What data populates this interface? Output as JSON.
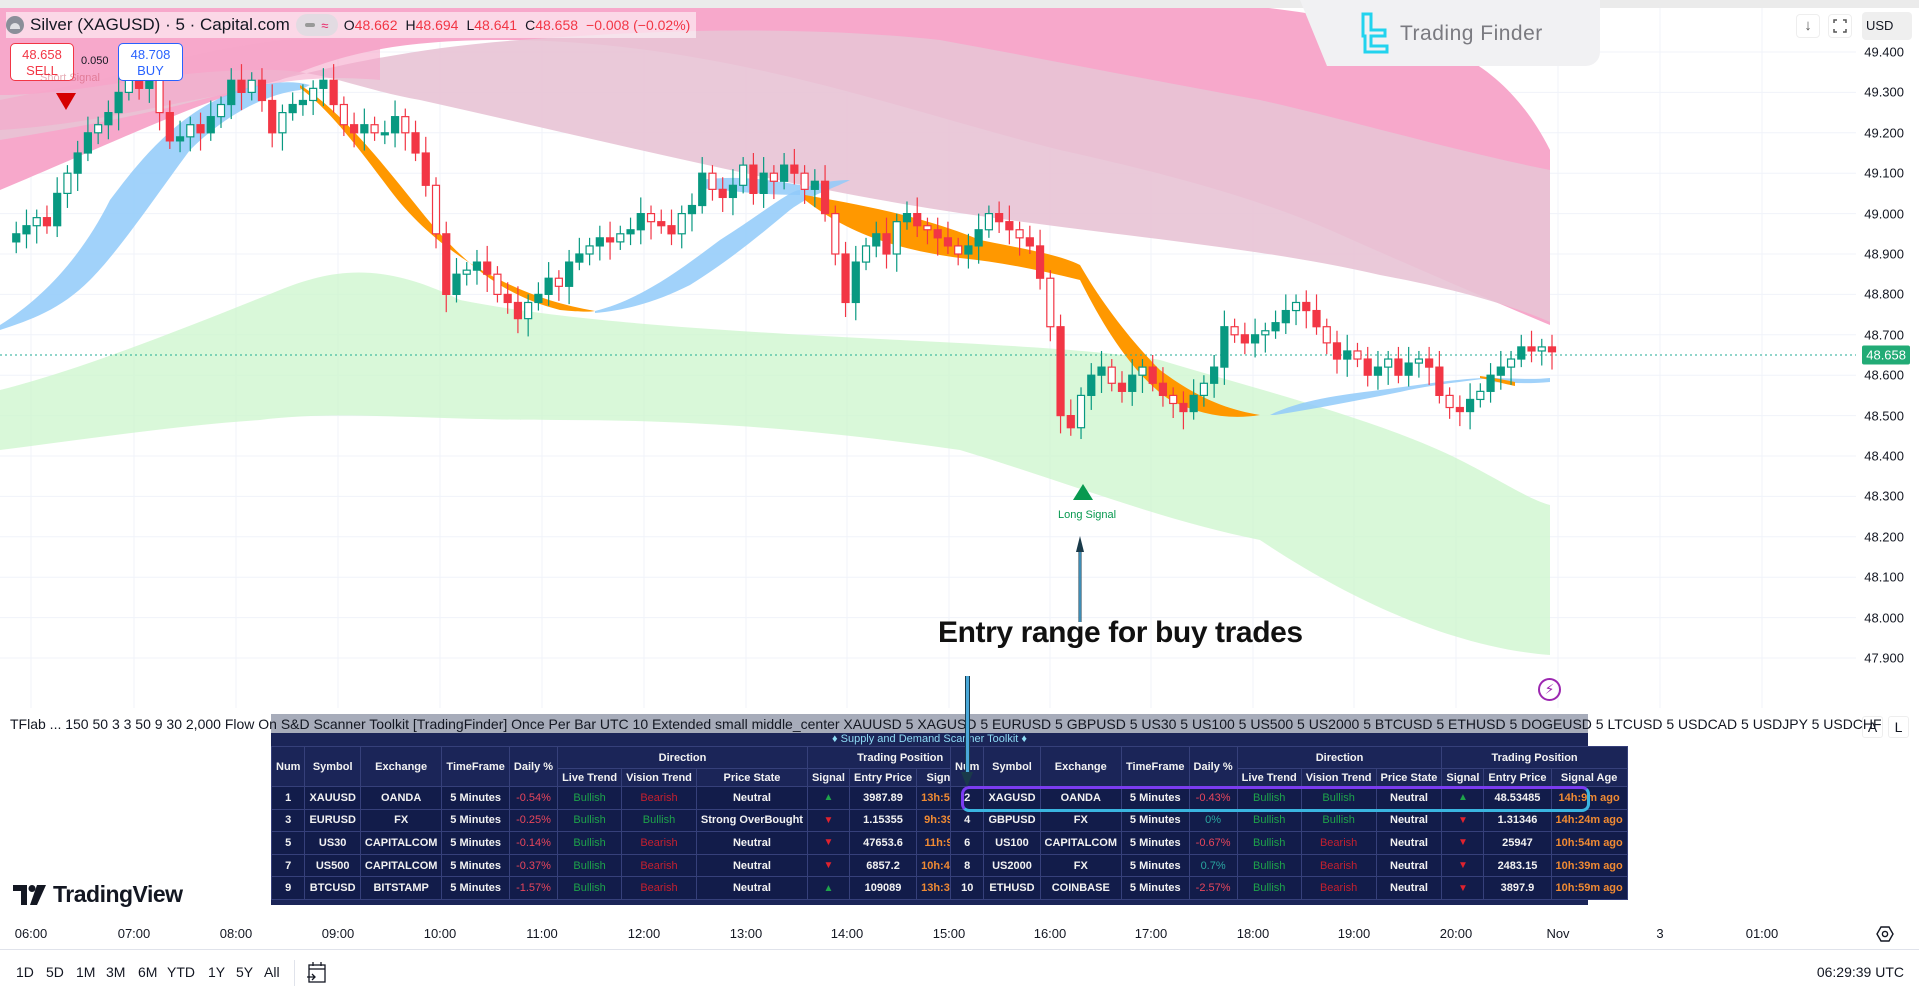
{
  "header": {
    "symbol_title": "Silver (XAGUSD) · 5 · Capital.com",
    "ohlc": {
      "open_label": "O",
      "open": "48.662",
      "high_label": "H",
      "high": "48.694",
      "low_label": "L",
      "low": "48.641",
      "close_label": "C",
      "close": "48.658",
      "change": "−0.008 (−0.02%)"
    },
    "sell": {
      "price": "48.658",
      "label": "SELL"
    },
    "buy": {
      "price": "48.708",
      "label": "BUY"
    },
    "spread": "0.050",
    "short_signal_label": "Short Signal"
  },
  "watermark": {
    "brand": "Trading Finder"
  },
  "top_controls": {
    "currency": "USD",
    "currency_caret": "⌄",
    "download_icon": "↓",
    "fullscreen_icon": "⛶"
  },
  "price_axis": {
    "labels": [
      "49.400",
      "49.300",
      "49.200",
      "49.100",
      "49.000",
      "48.900",
      "48.800",
      "48.700",
      "48.600",
      "48.500",
      "48.400",
      "48.300",
      "48.200",
      "48.100",
      "48.000",
      "47.900"
    ],
    "current_price": "48.658",
    "auto_label": "A",
    "log_label": "L"
  },
  "chart": {
    "long_signal_label": "Long Signal",
    "annotation": "Entry range for buy trades",
    "colors": {
      "up": "#089981",
      "down": "#f23645",
      "supply_zone_outer": "#f7a8cc",
      "supply_zone_inner": "#ecc8d8",
      "demand_zone": "#d4f5d4",
      "trend_bull": "#90caf9",
      "trend_bear": "#ff9800",
      "current_price_line": "#22ab94"
    }
  },
  "indicator_legend": "TFlab ... 150 50 3 3 50 9 30 2,000 Flow On S&D Scanner Toolkit [TradingFinder] Once Per Bar UTC 10 Extended small middle_center XAUUSD 5 XAGUSD 5 EURUSD 5 GBPUSD 5 US30 5 US100 5 US500 5 US2000 5 BTCUSD 5 ETHUSD 5 DOGEUSD 5 LTCUSD 5 USDCAD 5 USDJPY 5 USDCHF",
  "scanner": {
    "title": "♦ Supply and Demand Scanner Toolkit ♦",
    "headers": {
      "num": "Num",
      "symbol": "Symbol",
      "exchange": "Exchange",
      "timeframe": "TimeFrame",
      "daily": "Daily %",
      "direction": "Direction",
      "live_trend": "Live Trend",
      "vision_trend": "Vision Trend",
      "price_state": "Price State",
      "trading_position": "Trading Position",
      "signal": "Signal",
      "entry_price": "Entry Price",
      "signal_age": "Signal Age"
    },
    "left_rows": [
      {
        "num": "1",
        "symbol": "XAUUSD",
        "exchange": "OANDA",
        "timeframe": "5 Minutes",
        "daily": "-0.54%",
        "daily_sign": "neg",
        "live": "Bullish",
        "vision": "Bearish",
        "state": "Neutral",
        "signal": "▲",
        "signal_dir": "up",
        "entry": "3987.89",
        "age": "13h:54m ago"
      },
      {
        "num": "3",
        "symbol": "EURUSD",
        "exchange": "FX",
        "timeframe": "5 Minutes",
        "daily": "-0.25%",
        "daily_sign": "neg",
        "live": "Bullish",
        "vision": "Bullish",
        "state": "Strong OverBought",
        "signal": "▼",
        "signal_dir": "dn",
        "entry": "1.15355",
        "age": "9h:39m ago"
      },
      {
        "num": "5",
        "symbol": "US30",
        "exchange": "CAPITALCOM",
        "timeframe": "5 Minutes",
        "daily": "-0.14%",
        "daily_sign": "neg",
        "live": "Bullish",
        "vision": "Bearish",
        "state": "Neutral",
        "signal": "▼",
        "signal_dir": "dn",
        "entry": "47653.6",
        "age": "11h:9m ago"
      },
      {
        "num": "7",
        "symbol": "US500",
        "exchange": "CAPITALCOM",
        "timeframe": "5 Minutes",
        "daily": "-0.37%",
        "daily_sign": "neg",
        "live": "Bullish",
        "vision": "Bearish",
        "state": "Neutral",
        "signal": "▼",
        "signal_dir": "dn",
        "entry": "6857.2",
        "age": "10h:44m ago"
      },
      {
        "num": "9",
        "symbol": "BTCUSD",
        "exchange": "BITSTAMP",
        "timeframe": "5 Minutes",
        "daily": "-1.57%",
        "daily_sign": "neg",
        "live": "Bullish",
        "vision": "Bearish",
        "state": "Neutral",
        "signal": "▲",
        "signal_dir": "up",
        "entry": "109089",
        "age": "13h:39m ago"
      }
    ],
    "right_rows": [
      {
        "num": "2",
        "symbol": "XAGUSD",
        "exchange": "OANDA",
        "timeframe": "5 Minutes",
        "daily": "-0.43%",
        "daily_sign": "neg",
        "live": "Bullish",
        "vision": "Bullish",
        "state": "Neutral",
        "signal": "▲",
        "signal_dir": "up",
        "entry": "48.53485",
        "age": "14h:9m ago"
      },
      {
        "num": "4",
        "symbol": "GBPUSD",
        "exchange": "FX",
        "timeframe": "5 Minutes",
        "daily": "0%",
        "daily_sign": "pos",
        "live": "Bullish",
        "vision": "Bullish",
        "state": "Neutral",
        "signal": "▼",
        "signal_dir": "dn",
        "entry": "1.31346",
        "age": "14h:24m ago"
      },
      {
        "num": "6",
        "symbol": "US100",
        "exchange": "CAPITALCOM",
        "timeframe": "5 Minutes",
        "daily": "-0.67%",
        "daily_sign": "neg",
        "live": "Bullish",
        "vision": "Bearish",
        "state": "Neutral",
        "signal": "▼",
        "signal_dir": "dn",
        "entry": "25947",
        "age": "10h:54m ago"
      },
      {
        "num": "8",
        "symbol": "US2000",
        "exchange": "FX",
        "timeframe": "5 Minutes",
        "daily": "0.7%",
        "daily_sign": "pos",
        "live": "Bullish",
        "vision": "Bearish",
        "state": "Neutral",
        "signal": "▼",
        "signal_dir": "dn",
        "entry": "2483.15",
        "age": "10h:39m ago"
      },
      {
        "num": "10",
        "symbol": "ETHUSD",
        "exchange": "COINBASE",
        "timeframe": "5 Minutes",
        "daily": "-2.57%",
        "daily_sign": "neg",
        "live": "Bullish",
        "vision": "Bearish",
        "state": "Neutral",
        "signal": "▼",
        "signal_dir": "dn",
        "entry": "3897.9",
        "age": "10h:59m ago"
      }
    ]
  },
  "branding": {
    "tradingview": "TradingView"
  },
  "time_axis": {
    "labels": [
      "06:00",
      "07:00",
      "08:00",
      "09:00",
      "10:00",
      "11:00",
      "12:00",
      "13:00",
      "14:00",
      "15:00",
      "16:00",
      "17:00",
      "18:00",
      "19:00",
      "20:00",
      "Nov",
      "3",
      "01:00"
    ]
  },
  "bottom_bar": {
    "ranges": [
      "1D",
      "5D",
      "1M",
      "3M",
      "6M",
      "YTD",
      "1Y",
      "5Y",
      "All"
    ],
    "clock": "06:29:39 UTC"
  }
}
